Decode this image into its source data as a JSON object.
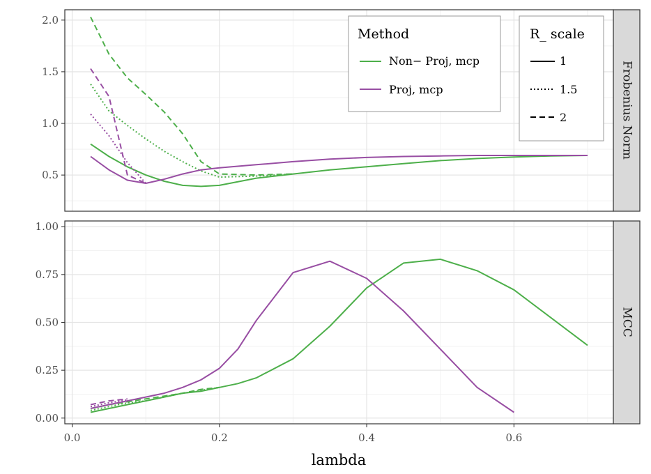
{
  "chart_data": {
    "type": "line",
    "xlabel": "lambda",
    "xlim": [
      -0.01,
      0.735
    ],
    "x_ticks": [
      0.0,
      0.2,
      0.4,
      0.6
    ],
    "x_tick_labels": [
      "0.0",
      "0.2",
      "0.4",
      "0.6"
    ],
    "colors": {
      "Non-Proj, mcp": "#4daf4a",
      "Proj, mcp": "#984ea3"
    },
    "legend": {
      "method_title": "Method",
      "method_entries": [
        "Non− Proj, mcp",
        "Proj, mcp"
      ],
      "method_keys": [
        "Non-Proj, mcp",
        "Proj, mcp"
      ],
      "scale_title": "R_ scale",
      "scale_entries": [
        "1",
        "1.5",
        "2"
      ]
    },
    "panels": [
      {
        "strip": "Frobenius Norm",
        "ylim": [
          0.15,
          2.1
        ],
        "y_ticks": [
          0.5,
          1.0,
          1.5,
          2.0
        ],
        "y_tick_labels": [
          "0.5",
          "1.0",
          "1.5",
          "2.0"
        ],
        "series": [
          {
            "method": "Non-Proj, mcp",
            "scale": "1",
            "x": [
              0.025,
              0.05,
              0.075,
              0.1,
              0.125,
              0.15,
              0.175,
              0.2,
              0.25,
              0.3,
              0.35,
              0.4,
              0.45,
              0.5,
              0.55,
              0.6,
              0.65,
              0.7
            ],
            "y": [
              0.8,
              0.68,
              0.58,
              0.5,
              0.44,
              0.4,
              0.39,
              0.4,
              0.47,
              0.51,
              0.55,
              0.58,
              0.61,
              0.64,
              0.66,
              0.675,
              0.685,
              0.69
            ]
          },
          {
            "method": "Non-Proj, mcp",
            "scale": "1.5",
            "x": [
              0.025,
              0.05,
              0.075,
              0.1,
              0.125,
              0.15,
              0.175,
              0.2,
              0.25,
              0.3
            ],
            "y": [
              1.38,
              1.12,
              0.98,
              0.85,
              0.73,
              0.63,
              0.54,
              0.48,
              0.49,
              0.51
            ]
          },
          {
            "method": "Non-Proj, mcp",
            "scale": "2",
            "x": [
              0.025,
              0.05,
              0.075,
              0.1,
              0.125,
              0.15,
              0.175,
              0.2,
              0.25,
              0.3
            ],
            "y": [
              2.03,
              1.67,
              1.44,
              1.28,
              1.11,
              0.9,
              0.63,
              0.51,
              0.5,
              0.51
            ]
          },
          {
            "method": "Proj, mcp",
            "scale": "1",
            "x": [
              0.025,
              0.05,
              0.075,
              0.1,
              0.125,
              0.15,
              0.175,
              0.2,
              0.25,
              0.3,
              0.35,
              0.4,
              0.45,
              0.5,
              0.55,
              0.6,
              0.65,
              0.7
            ],
            "y": [
              0.68,
              0.55,
              0.45,
              0.42,
              0.46,
              0.51,
              0.55,
              0.57,
              0.6,
              0.63,
              0.655,
              0.67,
              0.68,
              0.685,
              0.69,
              0.69,
              0.69,
              0.69
            ]
          },
          {
            "method": "Proj, mcp",
            "scale": "1.5",
            "x": [
              0.025,
              0.05,
              0.075,
              0.1
            ],
            "y": [
              1.09,
              0.88,
              0.62,
              0.42
            ]
          },
          {
            "method": "Proj, mcp",
            "scale": "2",
            "x": [
              0.025,
              0.05,
              0.075,
              0.1
            ],
            "y": [
              1.53,
              1.26,
              0.5,
              0.42
            ]
          }
        ]
      },
      {
        "strip": "MCC",
        "ylim": [
          -0.03,
          1.03
        ],
        "y_ticks": [
          0.0,
          0.25,
          0.5,
          0.75,
          1.0
        ],
        "y_tick_labels": [
          "0.00",
          "0.25",
          "0.50",
          "0.75",
          "1.00"
        ],
        "series": [
          {
            "method": "Non-Proj, mcp",
            "scale": "1",
            "x": [
              0.025,
              0.05,
              0.075,
              0.1,
              0.125,
              0.15,
              0.175,
              0.2,
              0.225,
              0.25,
              0.3,
              0.35,
              0.4,
              0.45,
              0.5,
              0.55,
              0.6,
              0.7
            ],
            "y": [
              0.03,
              0.05,
              0.07,
              0.09,
              0.11,
              0.13,
              0.14,
              0.16,
              0.18,
              0.21,
              0.31,
              0.48,
              0.68,
              0.81,
              0.83,
              0.77,
              0.67,
              0.38
            ]
          },
          {
            "method": "Non-Proj, mcp",
            "scale": "1.5",
            "x": [
              0.025,
              0.05,
              0.075,
              0.1,
              0.125,
              0.15,
              0.175,
              0.2
            ],
            "y": [
              0.04,
              0.06,
              0.08,
              0.09,
              0.11,
              0.13,
              0.145,
              0.16
            ]
          },
          {
            "method": "Non-Proj, mcp",
            "scale": "2",
            "x": [
              0.025,
              0.05,
              0.075,
              0.1,
              0.125,
              0.15,
              0.175,
              0.2
            ],
            "y": [
              0.05,
              0.07,
              0.085,
              0.1,
              0.115,
              0.13,
              0.15,
              0.16
            ]
          },
          {
            "method": "Proj, mcp",
            "scale": "1",
            "x": [
              0.025,
              0.05,
              0.075,
              0.1,
              0.125,
              0.15,
              0.175,
              0.2,
              0.225,
              0.25,
              0.3,
              0.35,
              0.4,
              0.45,
              0.5,
              0.55,
              0.6
            ],
            "y": [
              0.05,
              0.07,
              0.09,
              0.11,
              0.13,
              0.16,
              0.2,
              0.26,
              0.36,
              0.51,
              0.76,
              0.82,
              0.73,
              0.56,
              0.36,
              0.16,
              0.03
            ]
          },
          {
            "method": "Proj, mcp",
            "scale": "1.5",
            "x": [
              0.025,
              0.05,
              0.075
            ],
            "y": [
              0.06,
              0.08,
              0.095
            ]
          },
          {
            "method": "Proj, mcp",
            "scale": "2",
            "x": [
              0.025,
              0.05,
              0.075
            ],
            "y": [
              0.07,
              0.09,
              0.1
            ]
          }
        ]
      }
    ]
  }
}
